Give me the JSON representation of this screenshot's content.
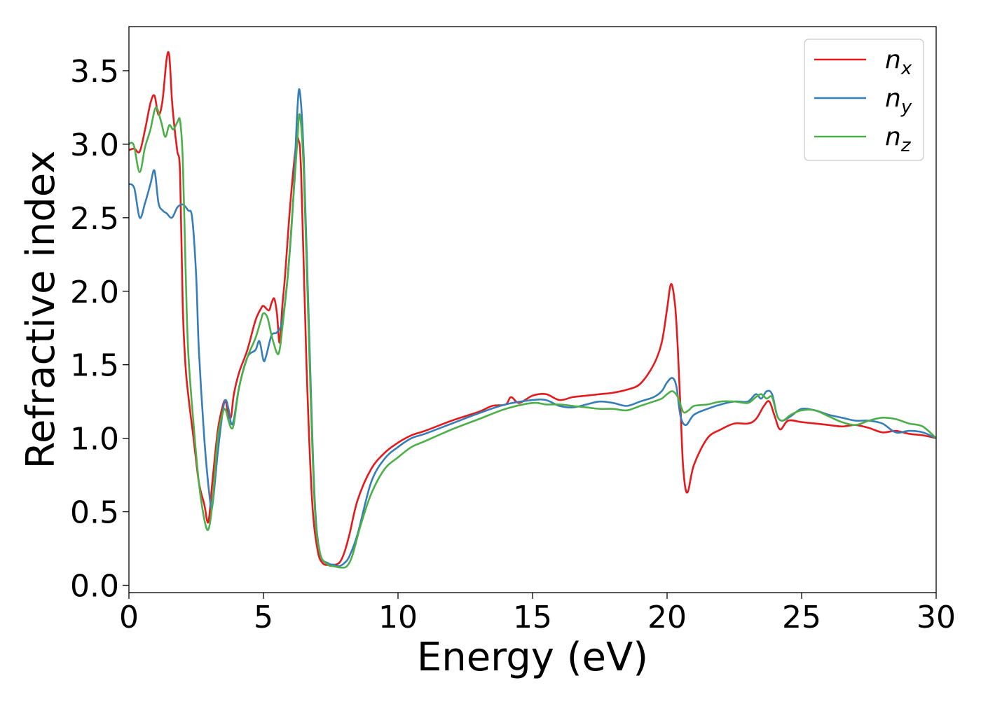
{
  "chart_data": {
    "type": "line",
    "xlabel": "Energy (eV)",
    "ylabel": "Refractive index",
    "xlim": [
      0,
      30
    ],
    "ylim": [
      -0.05,
      3.8
    ],
    "xticks": [
      "0",
      "5",
      "10",
      "15",
      "20",
      "25",
      "30"
    ],
    "yticks": [
      "0.0",
      "0.5",
      "1.0",
      "1.5",
      "2.0",
      "2.5",
      "3.0",
      "3.5"
    ],
    "grid": false,
    "legend_position": "top-right",
    "legend_labels": [
      {
        "base": "n",
        "sub": "x"
      },
      {
        "base": "n",
        "sub": "y"
      },
      {
        "base": "n",
        "sub": "z"
      }
    ],
    "colors": [
      "#e41a1c",
      "#377eb8",
      "#4daf4a"
    ],
    "series": [
      {
        "name": "n_x",
        "color": "#e41a1c",
        "x": [
          0,
          0.2,
          0.4,
          0.6,
          0.8,
          0.95,
          1.1,
          1.25,
          1.4,
          1.5,
          1.6,
          1.7,
          1.8,
          1.9,
          2.0,
          2.1,
          2.2,
          2.4,
          2.6,
          2.8,
          2.95,
          3.1,
          3.3,
          3.5,
          3.6,
          3.7,
          3.8,
          3.9,
          4.1,
          4.4,
          4.7,
          4.9,
          5.0,
          5.2,
          5.3,
          5.4,
          5.5,
          5.6,
          5.7,
          5.8,
          6.0,
          6.2,
          6.3,
          6.4,
          6.6,
          6.8,
          7.0,
          7.2,
          7.5,
          7.8,
          8.0,
          8.2,
          8.5,
          9.0,
          9.5,
          10,
          10.5,
          11,
          12,
          13,
          13.5,
          14,
          14.2,
          14.5,
          15,
          15.5,
          16,
          16.5,
          17,
          17.5,
          18,
          18.5,
          19,
          19.5,
          19.8,
          20.0,
          20.15,
          20.3,
          20.4,
          20.5,
          20.6,
          20.75,
          21.0,
          21.5,
          22,
          22.5,
          23,
          23.3,
          23.6,
          23.8,
          24.0,
          24.2,
          24.5,
          25,
          25.5,
          26,
          26.5,
          27,
          27.5,
          28,
          28.5,
          29,
          29.5,
          30
        ],
        "y": [
          2.96,
          2.97,
          2.95,
          3.1,
          3.28,
          3.33,
          3.2,
          3.3,
          3.58,
          3.6,
          3.3,
          3.1,
          2.95,
          2.8,
          1.9,
          1.5,
          1.3,
          1.0,
          0.7,
          0.55,
          0.43,
          0.7,
          1.05,
          1.23,
          1.25,
          1.15,
          1.15,
          1.3,
          1.45,
          1.6,
          1.8,
          1.88,
          1.9,
          1.87,
          1.92,
          1.95,
          1.85,
          1.65,
          1.9,
          2.1,
          2.6,
          2.98,
          3.03,
          2.8,
          1.5,
          0.6,
          0.25,
          0.15,
          0.14,
          0.15,
          0.22,
          0.35,
          0.58,
          0.79,
          0.9,
          0.97,
          1.02,
          1.05,
          1.12,
          1.18,
          1.22,
          1.23,
          1.28,
          1.24,
          1.29,
          1.3,
          1.26,
          1.28,
          1.29,
          1.3,
          1.31,
          1.33,
          1.37,
          1.5,
          1.65,
          1.88,
          2.05,
          1.9,
          1.6,
          1.2,
          0.8,
          0.63,
          0.82,
          1.0,
          1.06,
          1.1,
          1.1,
          1.13,
          1.22,
          1.25,
          1.15,
          1.06,
          1.12,
          1.11,
          1.1,
          1.09,
          1.08,
          1.09,
          1.07,
          1.04,
          1.05,
          1.03,
          1.02,
          1.0
        ]
      },
      {
        "name": "n_y",
        "color": "#377eb8",
        "x": [
          0,
          0.2,
          0.4,
          0.6,
          0.8,
          0.95,
          1.1,
          1.25,
          1.4,
          1.6,
          1.8,
          2.0,
          2.2,
          2.35,
          2.5,
          2.6,
          2.8,
          3.0,
          3.1,
          3.3,
          3.5,
          3.6,
          3.7,
          3.8,
          3.9,
          4.1,
          4.4,
          4.7,
          4.85,
          5.0,
          5.1,
          5.3,
          5.5,
          5.7,
          5.9,
          6.1,
          6.25,
          6.35,
          6.5,
          6.7,
          6.9,
          7.1,
          7.4,
          7.6,
          7.8,
          8.0,
          8.2,
          8.5,
          9.0,
          9.5,
          10,
          10.5,
          11,
          12,
          13,
          14,
          15,
          15.5,
          16,
          16.5,
          17,
          17.5,
          18,
          18.5,
          19,
          19.5,
          19.8,
          20.0,
          20.2,
          20.35,
          20.5,
          20.7,
          21.0,
          21.5,
          22,
          22.5,
          23,
          23.3,
          23.5,
          23.7,
          23.9,
          24.1,
          24.3,
          24.6,
          25,
          25.5,
          26,
          26.5,
          27,
          27.5,
          28,
          28.5,
          29,
          29.5,
          30
        ],
        "y": [
          2.73,
          2.7,
          2.5,
          2.6,
          2.73,
          2.82,
          2.6,
          2.55,
          2.53,
          2.5,
          2.57,
          2.59,
          2.55,
          2.5,
          2.1,
          1.6,
          1.0,
          0.6,
          0.54,
          0.9,
          1.2,
          1.26,
          1.2,
          1.1,
          1.13,
          1.35,
          1.55,
          1.6,
          1.66,
          1.53,
          1.56,
          1.7,
          1.72,
          1.8,
          2.1,
          2.6,
          3.2,
          3.36,
          2.9,
          1.7,
          0.6,
          0.22,
          0.15,
          0.14,
          0.13,
          0.15,
          0.2,
          0.35,
          0.7,
          0.86,
          0.94,
          1.0,
          1.03,
          1.1,
          1.17,
          1.23,
          1.26,
          1.26,
          1.22,
          1.21,
          1.23,
          1.25,
          1.24,
          1.22,
          1.25,
          1.28,
          1.32,
          1.38,
          1.41,
          1.35,
          1.15,
          1.09,
          1.16,
          1.2,
          1.23,
          1.25,
          1.25,
          1.3,
          1.27,
          1.32,
          1.3,
          1.15,
          1.12,
          1.15,
          1.2,
          1.19,
          1.16,
          1.14,
          1.12,
          1.12,
          1.1,
          1.04,
          1.05,
          1.04,
          1.0
        ]
      },
      {
        "name": "n_z",
        "color": "#4daf4a",
        "x": [
          0,
          0.1,
          0.2,
          0.4,
          0.6,
          0.8,
          1.0,
          1.2,
          1.35,
          1.5,
          1.65,
          1.8,
          1.9,
          2.0,
          2.1,
          2.2,
          2.4,
          2.6,
          2.8,
          2.95,
          3.1,
          3.3,
          3.5,
          3.6,
          3.7,
          3.8,
          3.9,
          4.1,
          4.4,
          4.7,
          4.9,
          5.0,
          5.15,
          5.3,
          5.5,
          5.6,
          5.7,
          5.9,
          6.1,
          6.25,
          6.35,
          6.5,
          6.7,
          6.9,
          7.1,
          7.4,
          7.6,
          7.9,
          8.1,
          8.3,
          8.6,
          9.0,
          9.5,
          10,
          10.5,
          11,
          12,
          13,
          14,
          15,
          15.5,
          16,
          16.5,
          17,
          17.5,
          18,
          18.5,
          19,
          19.5,
          19.8,
          20.0,
          20.2,
          20.4,
          20.6,
          20.8,
          21.0,
          21.5,
          22,
          22.5,
          23,
          23.3,
          23.5,
          23.7,
          23.9,
          24.1,
          24.3,
          24.6,
          25,
          25.5,
          26,
          26.5,
          27,
          27.5,
          28,
          28.5,
          29,
          29.5,
          30
        ],
        "y": [
          3.0,
          3.01,
          2.98,
          2.81,
          2.98,
          3.1,
          3.25,
          3.15,
          3.05,
          3.13,
          3.1,
          3.15,
          3.16,
          2.9,
          2.2,
          1.6,
          1.1,
          0.7,
          0.45,
          0.38,
          0.55,
          1.0,
          1.18,
          1.19,
          1.12,
          1.07,
          1.1,
          1.35,
          1.55,
          1.68,
          1.8,
          1.85,
          1.82,
          1.7,
          1.58,
          1.6,
          1.75,
          2.1,
          2.6,
          3.0,
          3.2,
          2.8,
          1.6,
          0.55,
          0.22,
          0.14,
          0.13,
          0.12,
          0.13,
          0.2,
          0.4,
          0.62,
          0.79,
          0.87,
          0.94,
          0.98,
          1.06,
          1.13,
          1.2,
          1.24,
          1.23,
          1.23,
          1.22,
          1.21,
          1.2,
          1.2,
          1.19,
          1.22,
          1.25,
          1.27,
          1.3,
          1.32,
          1.28,
          1.18,
          1.19,
          1.22,
          1.23,
          1.25,
          1.25,
          1.24,
          1.28,
          1.3,
          1.27,
          1.28,
          1.15,
          1.12,
          1.16,
          1.19,
          1.19,
          1.15,
          1.11,
          1.09,
          1.12,
          1.14,
          1.13,
          1.1,
          1.08,
          1.0
        ]
      }
    ]
  }
}
